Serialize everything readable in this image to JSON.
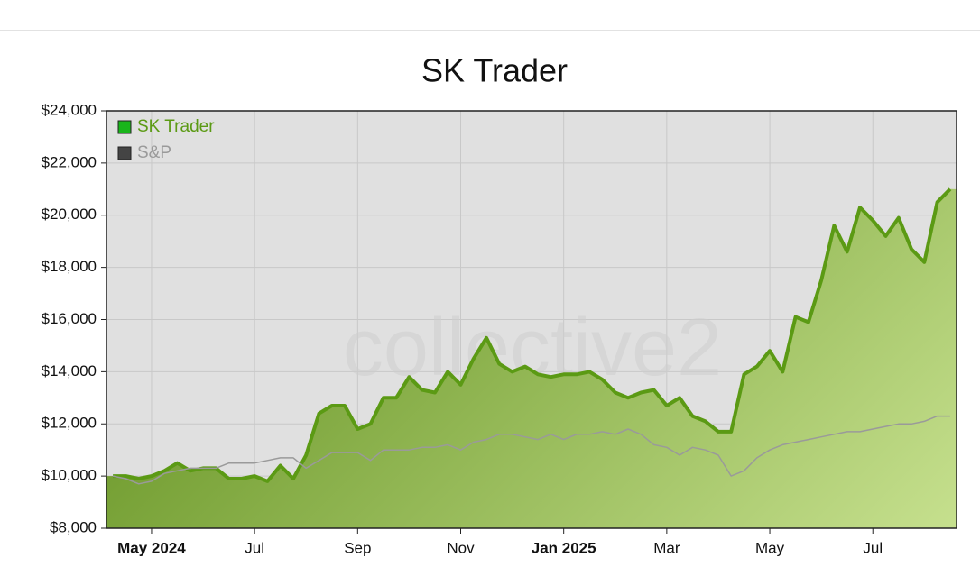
{
  "chart_data": {
    "type": "line",
    "title": "SK Trader",
    "watermark": "collective2",
    "categories": [
      null,
      null,
      null,
      "May 2024",
      null,
      null,
      null,
      null,
      null,
      null,
      null,
      "Jul",
      null,
      null,
      null,
      null,
      null,
      null,
      null,
      "Sep",
      null,
      null,
      null,
      null,
      null,
      null,
      null,
      "Nov",
      null,
      null,
      null,
      null,
      null,
      null,
      null,
      "Jan 2025",
      null,
      null,
      null,
      null,
      null,
      null,
      null,
      "Mar",
      null,
      null,
      null,
      null,
      null,
      null,
      null,
      "May",
      null,
      null,
      null,
      null,
      null,
      null,
      null,
      "Jul",
      null,
      null,
      null,
      null,
      null,
      null
    ],
    "series": [
      {
        "name": "SK Trader",
        "color": "#5b9a14",
        "legend_color": "#19b51b",
        "area": true,
        "values": [
          10000,
          10000,
          9900,
          10000,
          10200,
          10500,
          10200,
          10300,
          10300,
          9900,
          9900,
          10000,
          9800,
          10400,
          9900,
          10800,
          12400,
          12700,
          12700,
          11800,
          12000,
          13000,
          13000,
          13800,
          13300,
          13200,
          14000,
          13500,
          14500,
          15300,
          14300,
          14000,
          14200,
          13900,
          13800,
          13900,
          13900,
          14000,
          13700,
          13200,
          13000,
          13200,
          13300,
          12700,
          13000,
          12300,
          12100,
          11700,
          11700,
          13900,
          14200,
          14800,
          14000,
          16100,
          15900,
          17500,
          19600,
          18600,
          20300,
          19800,
          19200,
          19900,
          18700,
          18200,
          20500,
          21000
        ]
      },
      {
        "name": "S&P",
        "color": "#9a9a9a",
        "legend_color": "#444444",
        "area": false,
        "values": [
          10000,
          9900,
          9700,
          9800,
          10100,
          10200,
          10300,
          10300,
          10300,
          10500,
          10500,
          10500,
          10600,
          10700,
          10700,
          10300,
          10600,
          10900,
          10900,
          10900,
          10600,
          11000,
          11000,
          11000,
          11100,
          11100,
          11200,
          11000,
          11300,
          11400,
          11600,
          11600,
          11500,
          11400,
          11600,
          11400,
          11600,
          11600,
          11700,
          11600,
          11800,
          11600,
          11200,
          11100,
          10800,
          11100,
          11000,
          10800,
          10000,
          10200,
          10700,
          11000,
          11200,
          11300,
          11400,
          11500,
          11600,
          11700,
          11700,
          11800,
          11900,
          12000,
          12000,
          12100,
          12300,
          12300
        ]
      }
    ],
    "ylim": [
      8000,
      24000
    ],
    "yticks": [
      {
        "value": 8000,
        "label": "$8,000"
      },
      {
        "value": 10000,
        "label": "$10,000"
      },
      {
        "value": 12000,
        "label": "$12,000"
      },
      {
        "value": 14000,
        "label": "$14,000"
      },
      {
        "value": 16000,
        "label": "$16,000"
      },
      {
        "value": 18000,
        "label": "$18,000"
      },
      {
        "value": 20000,
        "label": "$20,000"
      },
      {
        "value": 22000,
        "label": "$22,000"
      },
      {
        "value": 24000,
        "label": "$24,000"
      }
    ],
    "grid": true,
    "legend": "top-left"
  }
}
